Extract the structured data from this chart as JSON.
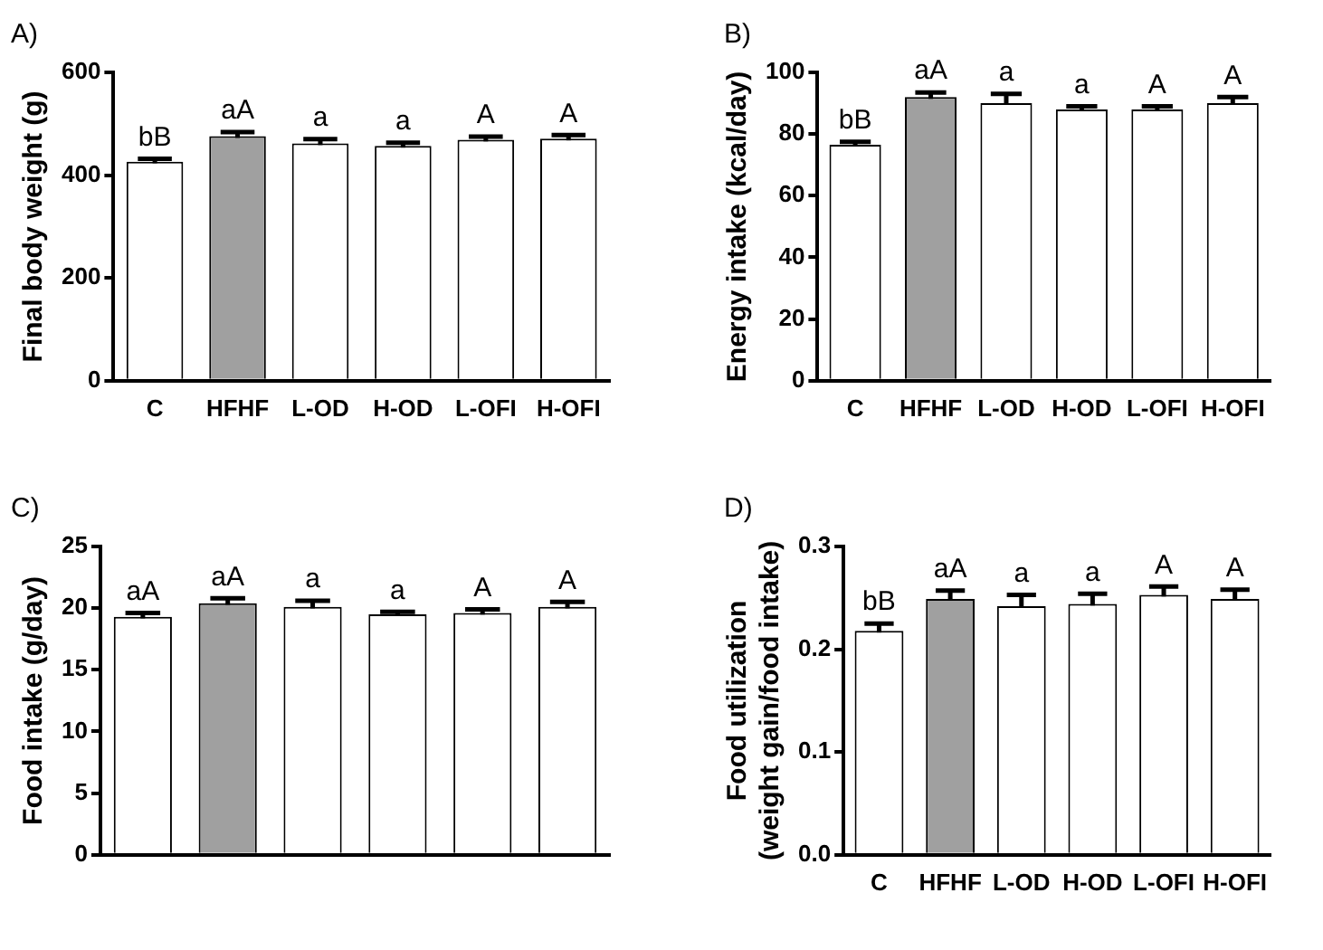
{
  "chart_data": [
    {
      "type": "bar",
      "title": "A)",
      "ylabel": "Final body weight (g)",
      "categories": [
        "C",
        "HFHF",
        "L-OD",
        "H-OD",
        "L-OFI",
        "H-OFI"
      ],
      "colors": [
        "#ffffff",
        "#a0a0a0",
        "#ffffff",
        "#ffffff",
        "#ffffff",
        "#ffffff"
      ],
      "values": [
        426,
        476,
        462,
        457,
        469,
        471
      ],
      "errors": [
        6,
        8,
        8,
        6,
        6,
        7
      ],
      "ylim": [
        0,
        600
      ],
      "yticks": [
        0,
        200,
        400,
        600
      ],
      "legend": false,
      "annotations": [
        "bB",
        "aA",
        "a",
        "a",
        "A",
        "A"
      ]
    },
    {
      "type": "bar",
      "title": "B)",
      "ylabel": "Energy intake (kcal/day)",
      "categories": [
        "C",
        "HFHF",
        "L-OD",
        "H-OD",
        "L-OFI",
        "H-OFI"
      ],
      "colors": [
        "#ffffff",
        "#a0a0a0",
        "#ffffff",
        "#ffffff",
        "#ffffff",
        "#ffffff"
      ],
      "values": [
        76.5,
        92,
        90,
        88,
        88,
        90
      ],
      "errors": [
        1,
        1.5,
        3,
        1,
        1,
        2
      ],
      "ylim": [
        0,
        100
      ],
      "yticks": [
        0,
        20,
        40,
        60,
        80,
        100
      ],
      "legend": false,
      "annotations": [
        "bB",
        "aA",
        "a",
        "a",
        "A",
        "A"
      ]
    },
    {
      "type": "bar",
      "title": "C)",
      "ylabel": "Food intake (g/day)",
      "categories": [
        null,
        null,
        null,
        null,
        null,
        null
      ],
      "colors": [
        "#ffffff",
        "#a0a0a0",
        "#ffffff",
        "#ffffff",
        "#ffffff",
        "#ffffff"
      ],
      "values": [
        19.3,
        20.4,
        20.1,
        19.5,
        19.6,
        20.1
      ],
      "errors": [
        0.3,
        0.4,
        0.5,
        0.2,
        0.3,
        0.4
      ],
      "ylim": [
        0,
        25
      ],
      "yticks": [
        0,
        5,
        10,
        15,
        20,
        25
      ],
      "legend": false,
      "annotations": [
        "aA",
        "aA",
        "a",
        "a",
        "A",
        "A"
      ]
    },
    {
      "type": "bar",
      "title": "D)",
      "ylabel": "Food utilization\n(weight gain/food intake)",
      "categories": [
        "C",
        "HFHF",
        "L-OD",
        "H-OD",
        "L-OFI",
        "H-OFI"
      ],
      "colors": [
        "#ffffff",
        "#a0a0a0",
        "#ffffff",
        "#ffffff",
        "#ffffff",
        "#ffffff"
      ],
      "values": [
        0.218,
        0.249,
        0.242,
        0.244,
        0.253,
        0.249
      ],
      "errors": [
        0.007,
        0.008,
        0.011,
        0.01,
        0.008,
        0.009
      ],
      "ylim": [
        0,
        0.3
      ],
      "yticks": [
        {
          "value": 0,
          "label": "0.0"
        },
        {
          "value": 0.1,
          "label": "0.1"
        },
        {
          "value": 0.2,
          "label": "0.2"
        },
        {
          "value": 0.3,
          "label": "0.3"
        }
      ],
      "legend": false,
      "annotations": [
        "bB",
        "aA",
        "a",
        "a",
        "A",
        "A"
      ]
    }
  ]
}
